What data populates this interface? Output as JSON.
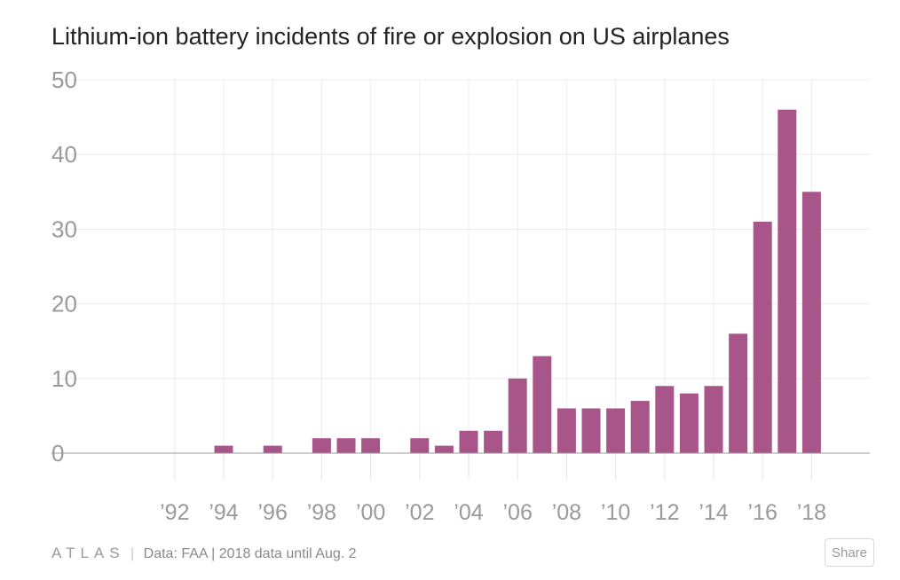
{
  "chart_data": {
    "type": "bar",
    "title": "Lithium-ion battery incidents of fire or explosion on US airplanes",
    "xlabel": "",
    "ylabel": "",
    "ylim": [
      0,
      50
    ],
    "yticks": [
      0,
      10,
      20,
      30,
      40,
      50
    ],
    "grid": true,
    "color": "#a8568a",
    "categories": [
      "1991",
      "1992",
      "1993",
      "1994",
      "1995",
      "1996",
      "1997",
      "1998",
      "1999",
      "2000",
      "2001",
      "2002",
      "2003",
      "2004",
      "2005",
      "2006",
      "2007",
      "2008",
      "2009",
      "2010",
      "2011",
      "2012",
      "2013",
      "2014",
      "2015",
      "2016",
      "2017",
      "2018"
    ],
    "values": [
      0,
      0,
      0,
      1,
      0,
      1,
      0,
      2,
      2,
      2,
      0,
      2,
      1,
      3,
      3,
      10,
      13,
      6,
      6,
      6,
      7,
      9,
      8,
      9,
      16,
      31,
      46,
      35
    ],
    "x_tick_labels": [
      {
        "year": "1992",
        "label": "’92"
      },
      {
        "year": "1994",
        "label": "’94"
      },
      {
        "year": "1996",
        "label": "’96"
      },
      {
        "year": "1998",
        "label": "’98"
      },
      {
        "year": "2000",
        "label": "’00"
      },
      {
        "year": "2002",
        "label": "’02"
      },
      {
        "year": "2004",
        "label": "’04"
      },
      {
        "year": "2006",
        "label": "’06"
      },
      {
        "year": "2008",
        "label": "’08"
      },
      {
        "year": "2010",
        "label": "’10"
      },
      {
        "year": "2012",
        "label": "’12"
      },
      {
        "year": "2014",
        "label": "’14"
      },
      {
        "year": "2016",
        "label": "’16"
      },
      {
        "year": "2018",
        "label": "’18"
      }
    ]
  },
  "footer": {
    "logo": "ATLAS",
    "separator": "|",
    "source": "Data:  FAA | 2018 data until Aug. 2",
    "share_label": "Share"
  }
}
